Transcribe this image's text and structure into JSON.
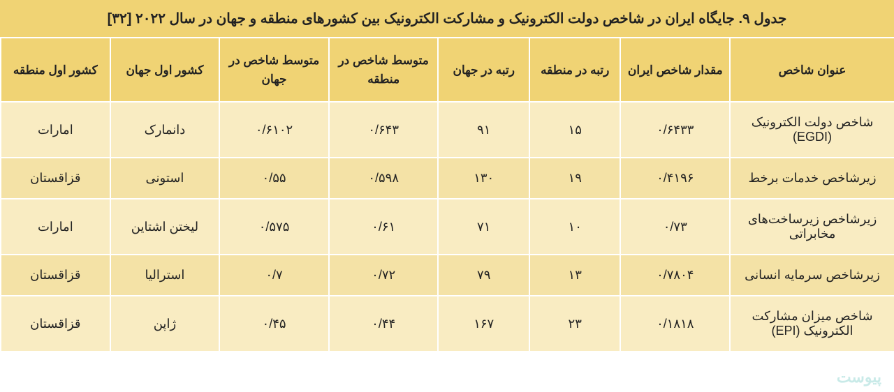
{
  "title": "جدول ۹. جایگاه ایران در شاخص دولت الکترونیک و مشارکت الکترونیک بین کشورهای منطقه و جهان در سال ۲۰۲۲ [۳۲]",
  "columns": [
    "عنوان شاخص",
    "مقدار شاخص ایران",
    "رتبه در منطقه",
    "رتبه در جهان",
    "متوسط شاخص در منطقه",
    "متوسط شاخص در جهان",
    "کشور اول جهان",
    "کشور اول منطقه"
  ],
  "rows": [
    {
      "c0": "شاخص دولت الکترونیک (EGDI)",
      "c1": "۰/۶۴۳۳",
      "c2": "۱۵",
      "c3": "۹۱",
      "c4": "۰/۶۴۳",
      "c5": "۰/۶۱۰۲",
      "c6": "دانمارک",
      "c7": "امارات"
    },
    {
      "c0": "زیرشاخص خدمات برخط",
      "c1": "۰/۴۱۹۶",
      "c2": "۱۹",
      "c3": "۱۳۰",
      "c4": "۰/۵۹۸",
      "c5": "۰/۵۵",
      "c6": "استونی",
      "c7": "قزاقستان"
    },
    {
      "c0": "زیرشاخص زیرساخت‌های مخابراتی",
      "c1": "۰/۷۳",
      "c2": "۱۰",
      "c3": "۷۱",
      "c4": "۰/۶۱",
      "c5": "۰/۵۷۵",
      "c6": "لیختن اشتاین",
      "c7": "امارات"
    },
    {
      "c0": "زیرشاخص سرمایه انسانی",
      "c1": "۰/۷۸۰۴",
      "c2": "۱۳",
      "c3": "۷۹",
      "c4": "۰/۷۲",
      "c5": "۰/۷",
      "c6": "استرالیا",
      "c7": "قزاقستان"
    },
    {
      "c0": "شاخص میزان مشارکت الکترونیک (EPI)",
      "c1": "۰/۱۸۱۸",
      "c2": "۲۳",
      "c3": "۱۶۷",
      "c4": "۰/۴۴",
      "c5": "۰/۴۵",
      "c6": "ژاپن",
      "c7": "قزاقستان"
    }
  ],
  "style": {
    "title_bg": "#f0d374",
    "header_bg": "#f0d374",
    "row_bg": "#f9ecc2",
    "row_alt_bg": "#f4e2a6",
    "border_color": "#ffffff",
    "text_color": "#222222",
    "title_fontsize": 20,
    "header_fontsize": 17,
    "cell_fontsize": 18,
    "col_widths_pct": [
      18,
      12,
      10,
      10,
      12,
      12,
      12,
      12
    ]
  },
  "watermark": "پیوست"
}
